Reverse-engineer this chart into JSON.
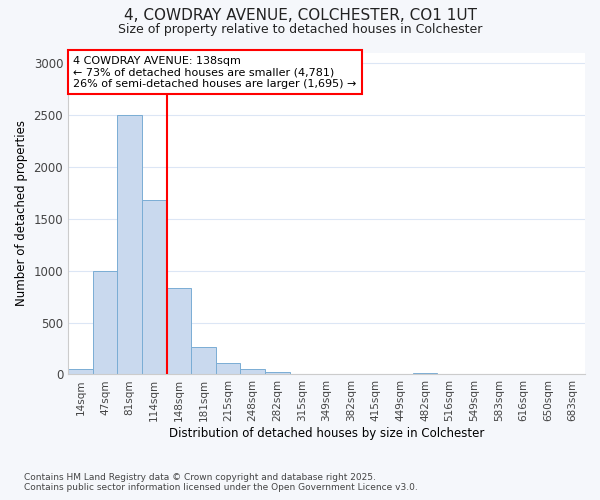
{
  "title_line1": "4, COWDRAY AVENUE, COLCHESTER, CO1 1UT",
  "title_line2": "Size of property relative to detached houses in Colchester",
  "xlabel": "Distribution of detached houses by size in Colchester",
  "ylabel": "Number of detached properties",
  "bar_labels": [
    "14sqm",
    "47sqm",
    "81sqm",
    "114sqm",
    "148sqm",
    "181sqm",
    "215sqm",
    "248sqm",
    "282sqm",
    "315sqm",
    "349sqm",
    "382sqm",
    "415sqm",
    "449sqm",
    "482sqm",
    "516sqm",
    "549sqm",
    "583sqm",
    "616sqm",
    "650sqm",
    "683sqm"
  ],
  "bar_values": [
    50,
    1000,
    2500,
    1680,
    830,
    260,
    115,
    50,
    25,
    0,
    0,
    0,
    0,
    0,
    15,
    0,
    0,
    0,
    0,
    0,
    0
  ],
  "bar_color": "#c9d9ee",
  "bar_edge_color": "#7aadd4",
  "vline_color": "red",
  "annotation_text": "4 COWDRAY AVENUE: 138sqm\n← 73% of detached houses are smaller (4,781)\n26% of semi-detached houses are larger (1,695) →",
  "annotation_box_color": "red",
  "ylim": [
    0,
    3100
  ],
  "yticks": [
    0,
    500,
    1000,
    1500,
    2000,
    2500,
    3000
  ],
  "footer_line1": "Contains HM Land Registry data © Crown copyright and database right 2025.",
  "footer_line2": "Contains public sector information licensed under the Open Government Licence v3.0.",
  "bg_color": "#f5f7fb",
  "plot_bg_color": "#ffffff",
  "grid_color": "#dce6f5"
}
